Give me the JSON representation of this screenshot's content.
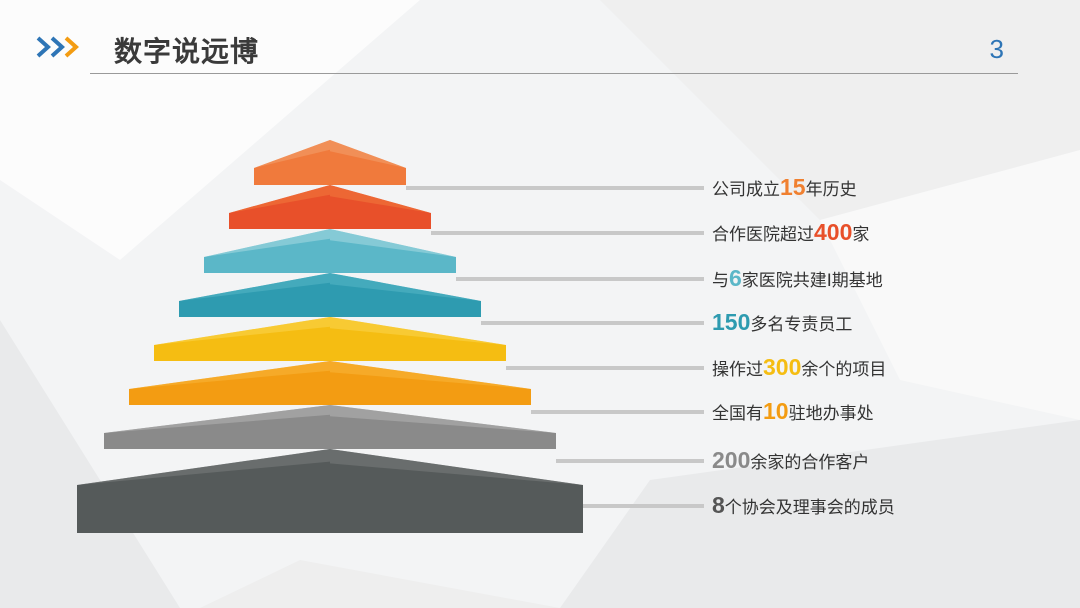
{
  "header": {
    "title": "数字说远博",
    "page_number": "3",
    "accent_color": "#2e75b6",
    "chevron_colors": [
      "#2e75b6",
      "#2e75b6",
      "#f39c12"
    ]
  },
  "stats": [
    {
      "prefix": "公司成立",
      "number": "15",
      "suffix": "年历史",
      "number_color": "#f08030"
    },
    {
      "prefix": "合作医院超过",
      "number": "400",
      "suffix": "家",
      "number_color": "#e8502a"
    },
    {
      "prefix": "与",
      "number": "6",
      "suffix": "家医院共建Ⅰ期基地",
      "number_color": "#5bb7c8"
    },
    {
      "prefix": "",
      "number": "150",
      "suffix": "多名专责员工",
      "number_color": "#2e9bb0"
    },
    {
      "prefix": "操作过",
      "number": "300",
      "suffix": "余个的项目",
      "number_color": "#f5bd12"
    },
    {
      "prefix": "全国有",
      "number": "10",
      "suffix": "驻地办事处",
      "number_color": "#f39c12"
    },
    {
      "prefix": "",
      "number": "200",
      "suffix": "余家的合作客户",
      "number_color": "#8a8a8a"
    },
    {
      "prefix": "",
      "number": "8",
      "suffix": "个协会及理事会的成员",
      "number_color": "#555555"
    }
  ],
  "tier_colors": [
    {
      "front": "#f07a3c",
      "back": "#f3a06e"
    },
    {
      "front": "#e8502a",
      "back": "#f07a3c"
    },
    {
      "front": "#5bb7c8",
      "back": "#a8dbe2"
    },
    {
      "front": "#2e9bb0",
      "back": "#58b6c6"
    },
    {
      "front": "#f5bd12",
      "back": "#fad64e"
    },
    {
      "front": "#f39c12",
      "back": "#f7b73a"
    },
    {
      "front": "#8a8a8a",
      "back": "#b4b4b4"
    },
    {
      "front": "#555a5a",
      "back": "#7a7e7e"
    }
  ]
}
